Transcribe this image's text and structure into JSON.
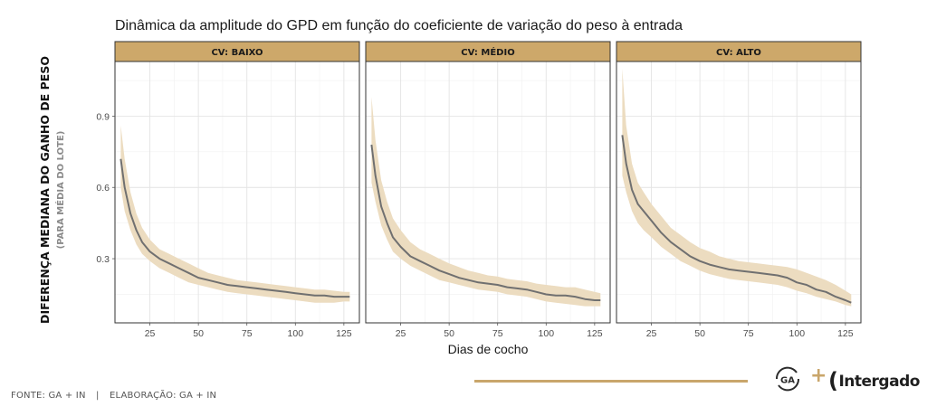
{
  "chart_data": {
    "type": "line",
    "title": "Dinâmica da amplitude do GPD em função do coeficiente de variação do peso à entrada",
    "xlabel": "Dias de cocho",
    "ylabel": "DIFERENÇA MEDIANA DO GANHO DE PESO",
    "ylabel_sub": "(PARA MÉDIA DO LOTE)",
    "xlim": [
      7,
      133
    ],
    "ylim": [
      0.03,
      1.13
    ],
    "xticks": [
      25,
      50,
      75,
      100,
      125
    ],
    "yticks": [
      0.3,
      0.6,
      0.9
    ],
    "grid": true,
    "colors": {
      "line": "#707070",
      "band": "#ecdcc0",
      "strip": "#cda86a",
      "panel_border": "#333333"
    },
    "panels": [
      {
        "label": "CV: BAIXO",
        "x": [
          10,
          12,
          15,
          18,
          21,
          25,
          30,
          35,
          40,
          45,
          50,
          55,
          60,
          65,
          70,
          75,
          80,
          85,
          90,
          95,
          100,
          105,
          110,
          115,
          120,
          125,
          128
        ],
        "y": [
          0.72,
          0.6,
          0.49,
          0.42,
          0.37,
          0.33,
          0.3,
          0.28,
          0.26,
          0.24,
          0.22,
          0.21,
          0.2,
          0.19,
          0.185,
          0.18,
          0.175,
          0.17,
          0.165,
          0.16,
          0.155,
          0.15,
          0.145,
          0.145,
          0.14,
          0.14,
          0.14
        ],
        "lower": [
          0.6,
          0.5,
          0.42,
          0.36,
          0.32,
          0.29,
          0.26,
          0.24,
          0.22,
          0.2,
          0.19,
          0.18,
          0.17,
          0.16,
          0.155,
          0.15,
          0.145,
          0.14,
          0.135,
          0.13,
          0.125,
          0.12,
          0.115,
          0.115,
          0.115,
          0.12,
          0.12
        ],
        "upper": [
          0.86,
          0.72,
          0.58,
          0.49,
          0.43,
          0.38,
          0.34,
          0.32,
          0.3,
          0.28,
          0.26,
          0.24,
          0.23,
          0.22,
          0.21,
          0.205,
          0.2,
          0.195,
          0.19,
          0.185,
          0.18,
          0.175,
          0.17,
          0.17,
          0.165,
          0.16,
          0.16
        ]
      },
      {
        "label": "CV: MÉDIO",
        "x": [
          10,
          12,
          15,
          18,
          21,
          25,
          30,
          35,
          40,
          45,
          50,
          55,
          60,
          65,
          70,
          75,
          80,
          85,
          90,
          95,
          100,
          105,
          110,
          115,
          120,
          125,
          128
        ],
        "y": [
          0.78,
          0.65,
          0.52,
          0.45,
          0.39,
          0.35,
          0.31,
          0.29,
          0.27,
          0.25,
          0.235,
          0.22,
          0.21,
          0.2,
          0.195,
          0.19,
          0.18,
          0.175,
          0.17,
          0.16,
          0.15,
          0.145,
          0.145,
          0.14,
          0.13,
          0.125,
          0.125
        ],
        "lower": [
          0.62,
          0.54,
          0.44,
          0.38,
          0.33,
          0.3,
          0.27,
          0.25,
          0.23,
          0.21,
          0.2,
          0.19,
          0.18,
          0.17,
          0.165,
          0.16,
          0.15,
          0.145,
          0.14,
          0.13,
          0.12,
          0.115,
          0.11,
          0.105,
          0.1,
          0.1,
          0.1
        ],
        "upper": [
          0.98,
          0.8,
          0.63,
          0.54,
          0.47,
          0.42,
          0.37,
          0.34,
          0.32,
          0.3,
          0.28,
          0.265,
          0.25,
          0.24,
          0.23,
          0.225,
          0.215,
          0.21,
          0.205,
          0.195,
          0.19,
          0.185,
          0.18,
          0.18,
          0.17,
          0.16,
          0.155
        ]
      },
      {
        "label": "CV: ALTO",
        "x": [
          10,
          12,
          15,
          18,
          21,
          25,
          30,
          35,
          40,
          45,
          50,
          55,
          60,
          65,
          70,
          75,
          80,
          85,
          90,
          95,
          100,
          105,
          110,
          115,
          120,
          125,
          128
        ],
        "y": [
          0.82,
          0.7,
          0.59,
          0.53,
          0.5,
          0.46,
          0.41,
          0.37,
          0.34,
          0.31,
          0.29,
          0.275,
          0.265,
          0.255,
          0.25,
          0.245,
          0.24,
          0.235,
          0.23,
          0.22,
          0.2,
          0.19,
          0.17,
          0.16,
          0.14,
          0.125,
          0.115
        ],
        "lower": [
          0.65,
          0.58,
          0.5,
          0.45,
          0.42,
          0.39,
          0.35,
          0.32,
          0.29,
          0.27,
          0.25,
          0.235,
          0.225,
          0.215,
          0.21,
          0.205,
          0.2,
          0.195,
          0.19,
          0.18,
          0.165,
          0.155,
          0.14,
          0.13,
          0.12,
          0.105,
          0.1
        ],
        "upper": [
          1.1,
          0.86,
          0.7,
          0.62,
          0.58,
          0.53,
          0.48,
          0.43,
          0.4,
          0.37,
          0.345,
          0.33,
          0.31,
          0.3,
          0.29,
          0.285,
          0.28,
          0.275,
          0.27,
          0.265,
          0.255,
          0.24,
          0.225,
          0.21,
          0.19,
          0.165,
          0.15
        ]
      }
    ]
  },
  "footer": {
    "source": "FONTE: GA + IN",
    "separator": "|",
    "elaboration": "ELABORAÇÃO: GA + IN"
  },
  "logos": {
    "ga": "GA",
    "plus": "+",
    "intergado": "Intergado"
  }
}
